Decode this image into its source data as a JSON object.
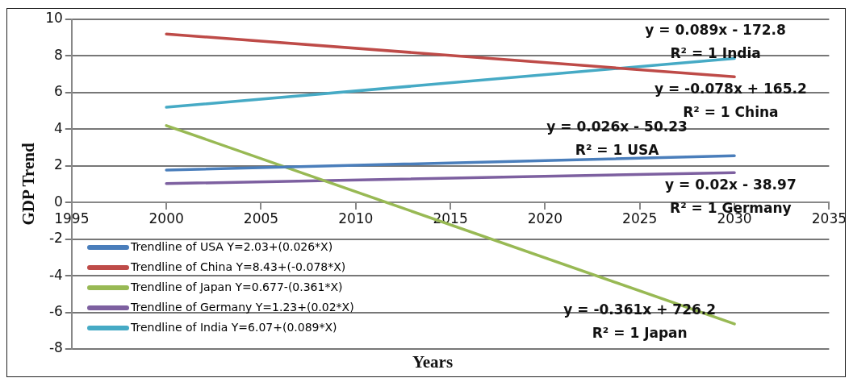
{
  "chart_data": {
    "type": "line",
    "xlabel": "Years",
    "ylabel": "GDP Trend",
    "x": [
      2000,
      2030
    ],
    "series": [
      {
        "name": "Trendline of USA Y=2.03+(0.026*X)",
        "color": "#4a7ebb",
        "values": [
          1.77,
          2.55
        ]
      },
      {
        "name": "Trendline of China Y=8.43+(-0.078*X)",
        "color": "#be4b48",
        "values": [
          9.2,
          6.86
        ]
      },
      {
        "name": "Trendline of Japan Y=0.677-(0.361*X)",
        "color": "#98b954",
        "values": [
          4.2,
          -6.63
        ]
      },
      {
        "name": "Trendline of Germany Y=1.23+(0.02*X)",
        "color": "#7d60a0",
        "values": [
          1.03,
          1.63
        ]
      },
      {
        "name": "Trendline of India Y=6.07+(0.089*X)",
        "color": "#46aac5",
        "values": [
          5.2,
          7.87
        ]
      }
    ],
    "xlim": [
      1995,
      2035
    ],
    "xticks": [
      1995,
      2000,
      2005,
      2010,
      2015,
      2020,
      2025,
      2030,
      2035
    ],
    "ylim": [
      -8,
      10
    ],
    "yticks": [
      -8,
      -6,
      -4,
      -2,
      0,
      2,
      4,
      6,
      8,
      10
    ],
    "annotations": [
      "y = 0.089x - 172.8\nR² = 1 India",
      "y = -0.078x + 165.2\nR² = 1 China",
      "y = 0.026x - 50.23\nR² = 1 USA",
      "y = 0.02x - 38.97\nR² = 1 Germany",
      "y = -0.361x + 726.2\nR² = 1 Japan"
    ],
    "grid": "y",
    "legend": "bottom left",
    "marker": "none",
    "line_style": "solid"
  }
}
